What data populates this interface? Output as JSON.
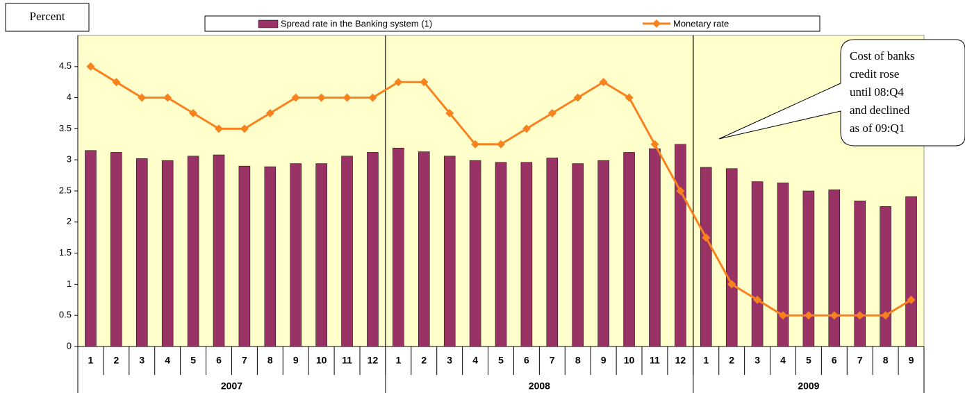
{
  "chart_data": {
    "type": "bar_line",
    "y_label": "Percent",
    "categories": [
      "1",
      "2",
      "3",
      "4",
      "5",
      "6",
      "7",
      "8",
      "9",
      "10",
      "11",
      "12",
      "1",
      "2",
      "3",
      "4",
      "5",
      "6",
      "7",
      "8",
      "9",
      "10",
      "11",
      "12",
      "1",
      "2",
      "3",
      "4",
      "5",
      "6",
      "7",
      "8",
      "9"
    ],
    "category_groups": [
      "2007",
      "2008",
      "2009"
    ],
    "series": [
      {
        "name": "Spread rate in the Banking system (1)",
        "kind": "bar",
        "color": "#993366",
        "values": [
          3.15,
          3.12,
          3.02,
          2.99,
          3.06,
          3.08,
          2.9,
          2.89,
          2.94,
          2.94,
          3.06,
          3.12,
          3.19,
          3.13,
          3.06,
          2.99,
          2.96,
          2.96,
          3.03,
          2.94,
          2.99,
          3.12,
          3.18,
          3.25,
          2.88,
          2.86,
          2.65,
          2.63,
          2.5,
          2.52,
          2.34,
          2.25,
          2.41
        ]
      },
      {
        "name": "Monetary rate",
        "kind": "line",
        "color": "#f7821e",
        "values": [
          4.5,
          4.25,
          4,
          4,
          3.75,
          3.5,
          3.5,
          3.75,
          4,
          4,
          4,
          4,
          4.25,
          4.25,
          3.75,
          3.25,
          3.25,
          3.5,
          3.75,
          4,
          4.25,
          4,
          3.25,
          2.5,
          1.75,
          1,
          0.75,
          0.5,
          0.5,
          0.5,
          0.5,
          0.5,
          0.75
        ]
      }
    ],
    "ylim": [
      0,
      5
    ],
    "yticks": [
      0,
      0.5,
      1,
      1.5,
      2,
      2.5,
      3,
      3.5,
      4,
      4.5
    ],
    "annotation": [
      "Cost of banks",
      "credit rose",
      "until 08:Q4",
      "and declined",
      "as of 09:Q1"
    ],
    "legend": "top",
    "plot_background": "#ffffcc"
  }
}
